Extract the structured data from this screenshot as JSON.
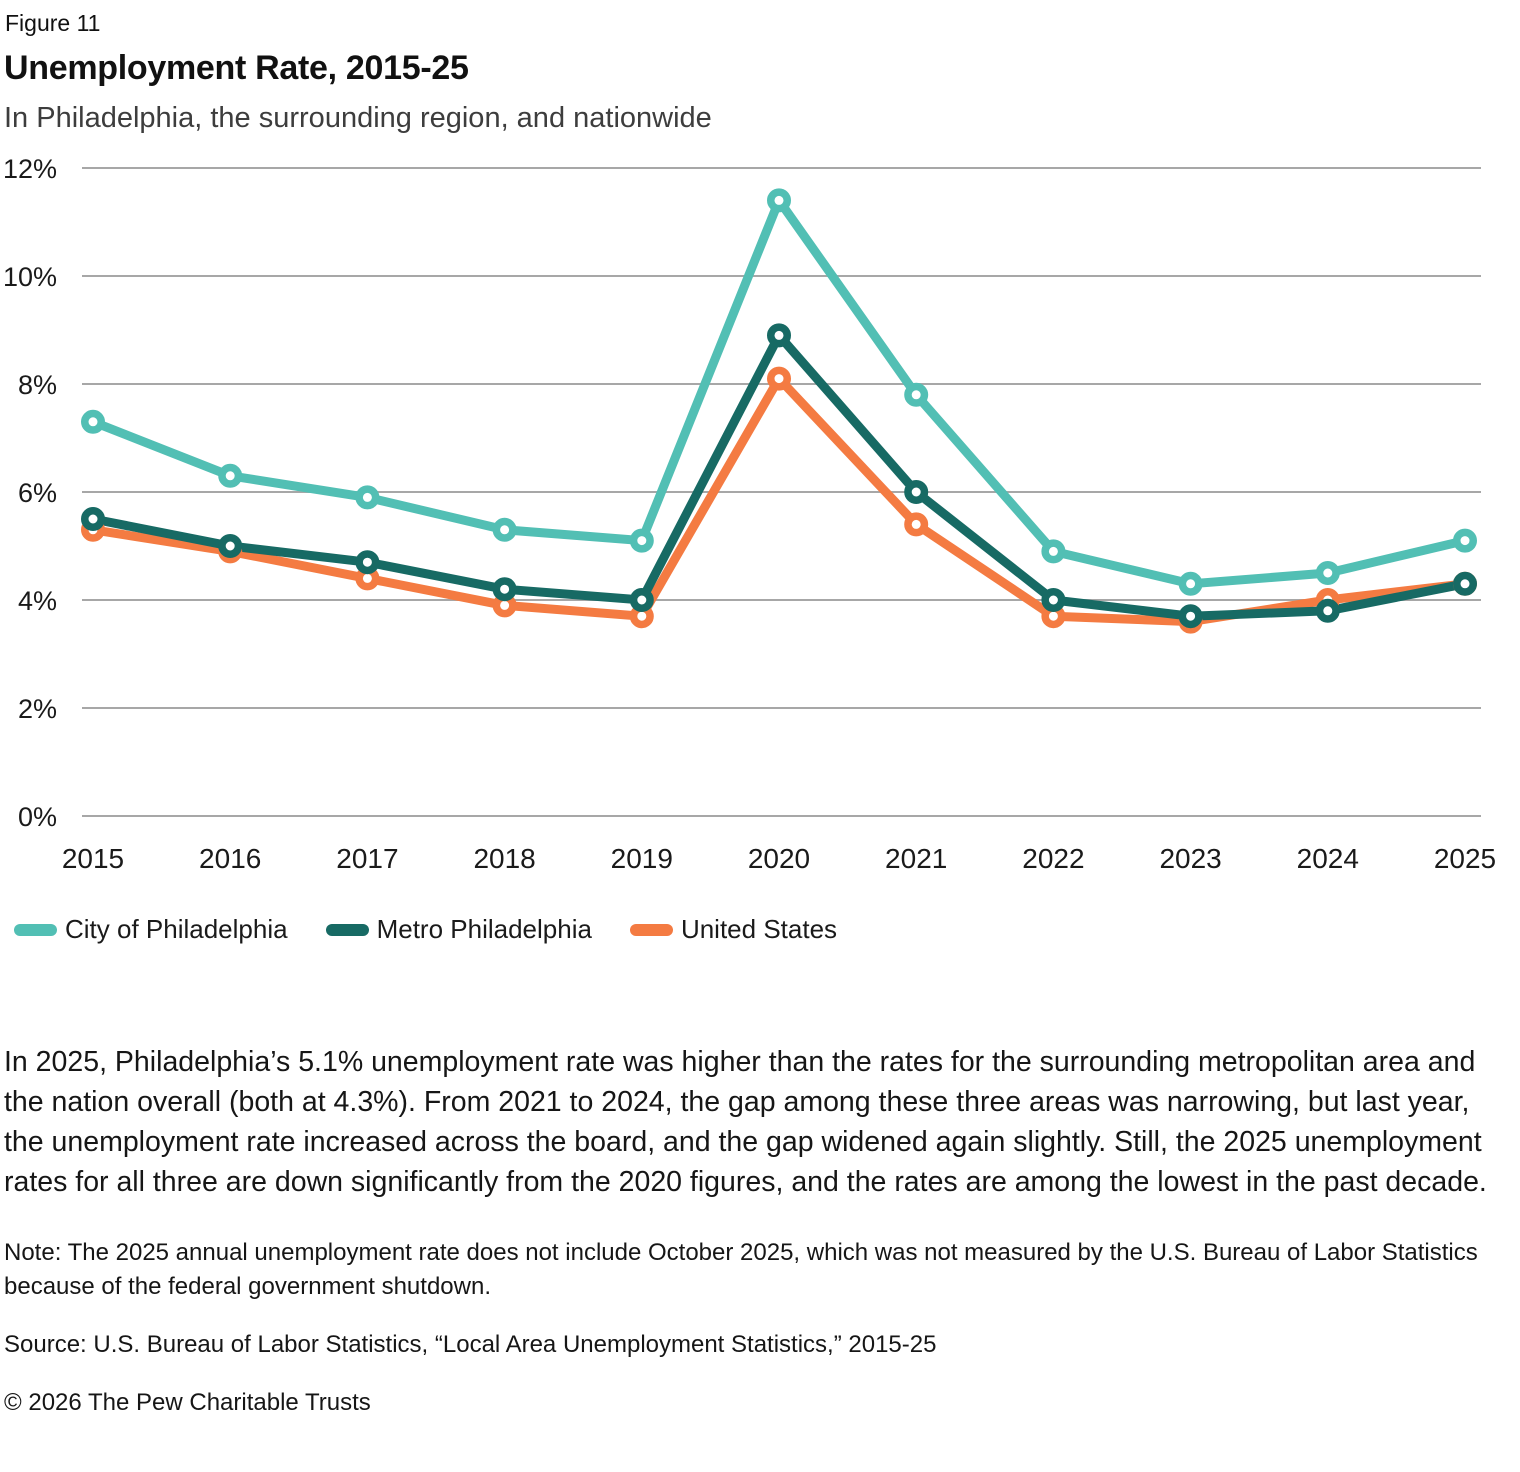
{
  "header": {
    "figure_label": "Figure 11",
    "title": "Unemployment Rate, 2015-25",
    "subtitle": "In Philadelphia, the surrounding region, and nationwide"
  },
  "chart_data": {
    "type": "line",
    "x": [
      "2015",
      "2016",
      "2017",
      "2018",
      "2019",
      "2020",
      "2021",
      "2022",
      "2023",
      "2024",
      "2025"
    ],
    "series": [
      {
        "name": "City of Philadelphia",
        "color": "#52BFB4",
        "values": [
          7.3,
          6.3,
          5.9,
          5.3,
          5.1,
          11.4,
          7.8,
          4.9,
          4.3,
          4.5,
          5.1
        ]
      },
      {
        "name": "Metro Philadelphia",
        "color": "#176A64",
        "values": [
          5.5,
          5.0,
          4.7,
          4.2,
          4.0,
          8.9,
          6.0,
          4.0,
          3.7,
          3.8,
          4.3
        ]
      },
      {
        "name": "United States",
        "color": "#F47B42",
        "values": [
          5.3,
          4.9,
          4.4,
          3.9,
          3.7,
          8.1,
          5.4,
          3.7,
          3.6,
          4.0,
          4.3
        ]
      }
    ],
    "draw_order": [
      0,
      2,
      1
    ],
    "title": "Unemployment Rate, 2015-25",
    "xlabel": "",
    "ylabel": "",
    "ylim": [
      0,
      12
    ],
    "yticks": [
      0,
      2,
      4,
      6,
      8,
      10,
      12
    ],
    "ytick_labels": [
      "0%",
      "2%",
      "4%",
      "6%",
      "8%",
      "10%",
      "12%"
    ],
    "grid": true,
    "legend_position": "bottom-left"
  },
  "legend": {
    "items": [
      {
        "label": "City of Philadelphia",
        "color": "#52BFB4"
      },
      {
        "label": "Metro Philadelphia",
        "color": "#176A64"
      },
      {
        "label": "United States",
        "color": "#F47B42"
      }
    ]
  },
  "body_text": "In 2025, Philadelphia’s 5.1% unemployment rate was higher than the rates for the surrounding metropolitan area and the nation overall (both at 4.3%). From 2021 to 2024, the gap among these three areas was narrowing, but last year, the unemployment rate increased across the board, and the gap widened again slightly. Still, the 2025 unemployment rates for all three are down significantly from the 2020 figures, and the rates are among the lowest in the past decade.",
  "note_text": "Note: The 2025 annual unemployment rate does not include October 2025, which was not measured by the U.S. Bureau of Labor Statistics because of the federal government shutdown.",
  "source_text": "Source: U.S. Bureau of Labor Statistics, “Local Area Unemployment Statistics,” 2015-25",
  "copyright_text": "© 2026 The Pew Charitable Trusts",
  "colors": {
    "grid": "#A7A7A7",
    "axis_text": "#1A1A1A"
  }
}
